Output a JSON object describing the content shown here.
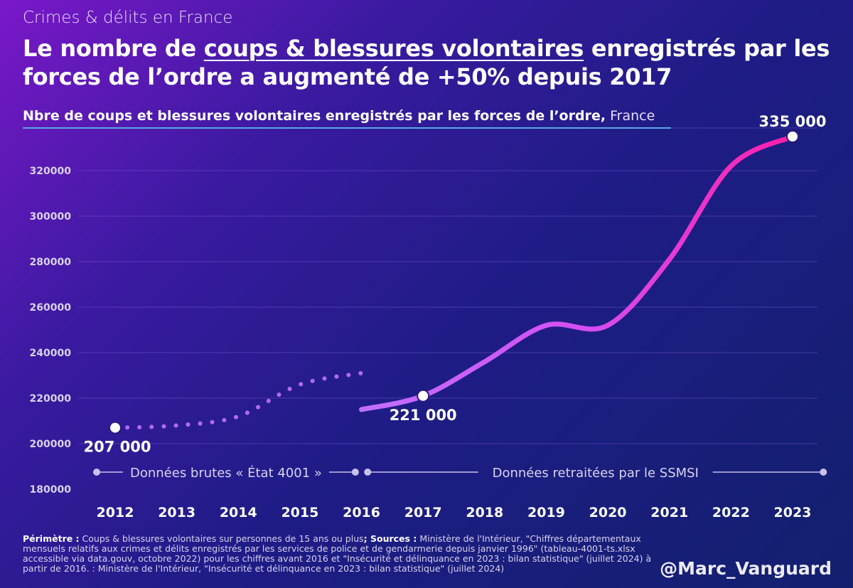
{
  "kicker": "Crimes & délits en France",
  "headline": {
    "part1": "Le nombre de ",
    "underlined": "coups & blessures volontaires",
    "part2": " enregistrés par les forces de l’ordre a augmenté de +50% depuis 2017"
  },
  "subtitle": {
    "main": "Nbre de coups et blessures volontaires enregistrés par les forces de l’ordre,",
    "region": " France"
  },
  "chart_data": {
    "type": "line",
    "title": "Nbre de coups et blessures volontaires enregistrés par les forces de l’ordre, France",
    "x": [
      2012,
      2013,
      2014,
      2015,
      2016,
      2017,
      2018,
      2019,
      2020,
      2021,
      2022,
      2023
    ],
    "ylim": [
      180000,
      335000
    ],
    "yticks": [
      180000,
      200000,
      220000,
      240000,
      260000,
      280000,
      300000,
      320000
    ],
    "series": [
      {
        "name": "Données brutes « État 4001 »",
        "style": "dotted",
        "color": "#b06af0",
        "x": [
          2012,
          2013,
          2014,
          2015,
          2016
        ],
        "values": [
          207000,
          208000,
          212000,
          226000,
          231000
        ]
      },
      {
        "name": "Données retraitées par le SSMSI",
        "style": "solid",
        "color_start": "#c070ff",
        "color_end": "#ff1ea8",
        "x": [
          2016,
          2017,
          2018,
          2019,
          2020,
          2021,
          2022,
          2023
        ],
        "values": [
          215000,
          221000,
          236000,
          252000,
          252000,
          281000,
          322000,
          335000
        ]
      }
    ],
    "annotations": [
      {
        "x": 2012,
        "value": 207000,
        "label": "207 000",
        "position": "below"
      },
      {
        "x": 2017,
        "value": 221000,
        "label": "221 000",
        "position": "below"
      },
      {
        "x": 2023,
        "value": 335000,
        "label": "335 000",
        "position": "above"
      }
    ],
    "period_labels": [
      {
        "text": "Données brutes « État 4001 »",
        "from": 2011.7,
        "to": 2015.9
      },
      {
        "text": "Données retraitées par le SSMSI",
        "from": 2016.1,
        "to": 2023.5
      }
    ]
  },
  "footer": {
    "perimetre_label": "Périmètre :",
    "perimetre_text": " Coups & blessures volontaires sur personnes de 15 ans ou plus",
    "sources_label": "; Sources :",
    "sources_text": " Ministère de l'Intérieur, \"Chiffres départementaux mensuels relatifs aux crimes et délits enregistrés par les services de police et de gendarmerie depuis janvier 1996\" (tableau-4001-ts.xlsx accessible via data.gouv, octobre 2022) pour les chiffres avant 2016 et \"Insécurité et délinquance en 2023 : bilan statistique\" (juillet 2024) à partir de 2016. : Ministère de l'Intérieur, \"Insécurité et délinquance en 2023 : bilan statistique\" (juillet 2024)"
  },
  "handle": "@Marc_Vanguard"
}
